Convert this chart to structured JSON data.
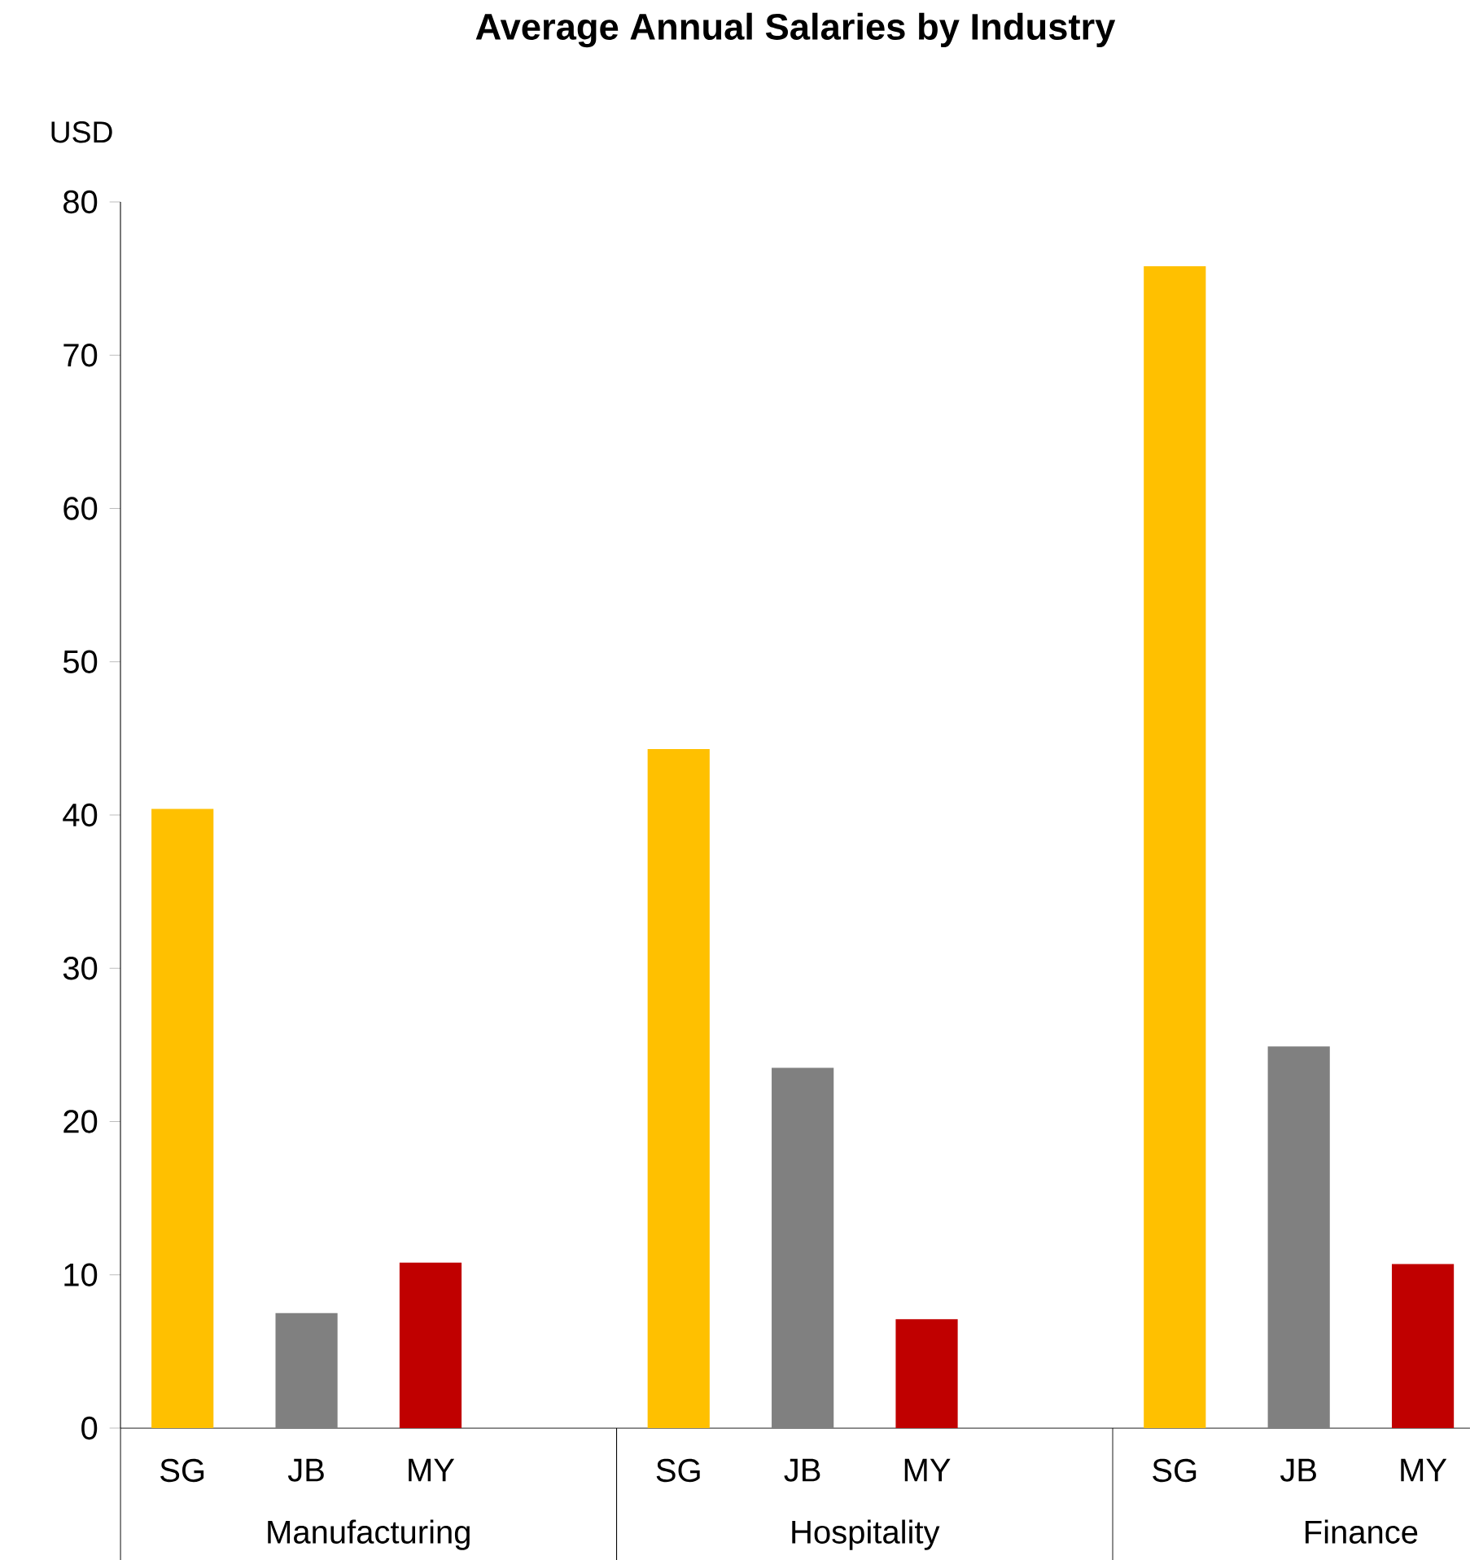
{
  "chart_data": {
    "type": "bar",
    "title": "Average Annual Salaries by Industry",
    "ylabel": "USD",
    "categories": [
      "Manufacturing",
      "Hospitality",
      "Finance"
    ],
    "series": [
      {
        "name": "SG",
        "color": "#ffc000",
        "values": [
          40.4,
          44.3,
          75.8
        ]
      },
      {
        "name": "JB",
        "color": "#808080",
        "values": [
          7.5,
          23.5,
          24.9
        ]
      },
      {
        "name": "MY",
        "color": "#c00000",
        "values": [
          10.8,
          7.1,
          10.7
        ]
      }
    ],
    "ylim": [
      0,
      80
    ],
    "yticks": [
      0,
      10,
      20,
      30,
      40,
      50,
      60,
      70,
      80
    ]
  }
}
